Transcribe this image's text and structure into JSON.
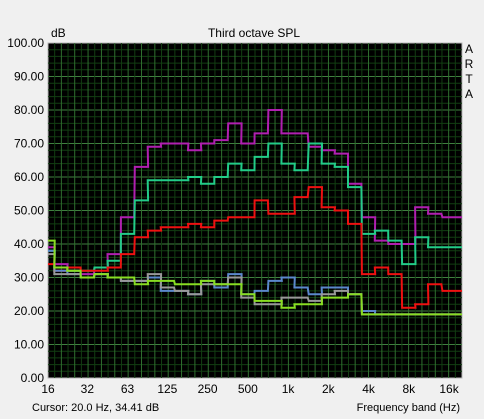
{
  "chart_data": {
    "type": "line",
    "title": "Third octave SPL",
    "ylabel": "dB",
    "xlabel": "Frequency band (Hz)",
    "ylim": [
      0,
      100
    ],
    "grid": true,
    "y_ticks": [
      "0.00",
      "10.00",
      "20.00",
      "30.00",
      "40.00",
      "50.00",
      "60.00",
      "70.00",
      "80.00",
      "90.00",
      "100.00"
    ],
    "x_tick_labels": [
      {
        "freq": 16,
        "label": "16"
      },
      {
        "freq": 31.5,
        "label": "32"
      },
      {
        "freq": 63,
        "label": "63"
      },
      {
        "freq": 125,
        "label": "125"
      },
      {
        "freq": 250,
        "label": "250"
      },
      {
        "freq": 500,
        "label": "500"
      },
      {
        "freq": 1000,
        "label": "1k"
      },
      {
        "freq": 2000,
        "label": "2k"
      },
      {
        "freq": 4000,
        "label": "4k"
      },
      {
        "freq": 8000,
        "label": "8k"
      },
      {
        "freq": 16000,
        "label": "16k"
      }
    ],
    "x": [
      16,
      20,
      25,
      31.5,
      40,
      50,
      63,
      80,
      100,
      125,
      160,
      200,
      250,
      315,
      400,
      500,
      630,
      800,
      1000,
      1250,
      1600,
      2000,
      2500,
      3150,
      4000,
      5000,
      6300,
      8000,
      10000,
      12500,
      16000,
      20000
    ],
    "series": [
      {
        "color": "#b01fb0",
        "values": [
          39,
          34,
          32,
          31,
          33,
          37,
          48,
          63,
          69,
          70,
          70,
          68,
          70,
          71,
          76,
          70,
          73,
          80,
          73,
          73,
          69,
          68,
          67,
          58,
          48,
          41,
          40,
          40,
          51,
          49,
          48,
          48
        ]
      },
      {
        "color": "#22cc88",
        "values": [
          38,
          33,
          32,
          32,
          33,
          35,
          43,
          53,
          59,
          59,
          59,
          60,
          58,
          60,
          64,
          62,
          66,
          70,
          64,
          62,
          70,
          64,
          63,
          57,
          43,
          44,
          41,
          34,
          42,
          39,
          39,
          39
        ]
      },
      {
        "color": "#ee1111",
        "values": [
          34,
          32,
          33,
          32,
          32,
          33,
          37,
          42,
          44,
          45,
          45,
          46,
          45,
          47,
          48,
          48,
          53,
          49,
          49,
          54,
          57,
          51,
          50,
          46,
          31,
          33,
          31,
          21,
          22,
          28,
          26,
          26
        ]
      },
      {
        "color": "#5b88cc",
        "values": [
          38,
          32,
          31,
          30,
          31,
          30,
          29,
          29,
          30,
          26,
          26,
          25,
          29,
          27,
          31,
          25,
          26,
          29,
          30,
          27,
          25,
          27,
          27,
          25,
          20,
          19,
          19,
          19,
          19,
          19,
          19,
          19
        ]
      },
      {
        "color": "#999999",
        "values": [
          37,
          31,
          31,
          30,
          31,
          30,
          29,
          29,
          31,
          27,
          26,
          25,
          28,
          28,
          30,
          24,
          22,
          22,
          24,
          24,
          23,
          25,
          26,
          25,
          19,
          19,
          19,
          19,
          19,
          19,
          19,
          19
        ]
      },
      {
        "color": "#88dd22",
        "values": [
          41,
          33,
          32,
          30,
          31,
          30,
          30,
          28,
          29,
          29,
          28,
          28,
          29,
          28,
          28,
          25,
          23,
          23,
          21,
          22,
          22,
          24,
          24,
          25,
          19,
          19,
          19,
          19,
          19,
          19,
          19,
          19
        ]
      }
    ]
  },
  "side_label": [
    "A",
    "R",
    "T",
    "A"
  ],
  "footer": {
    "cursor_text": "Cursor:   20.0 Hz, 34.41 dB",
    "band_label": "Frequency band (Hz)"
  }
}
